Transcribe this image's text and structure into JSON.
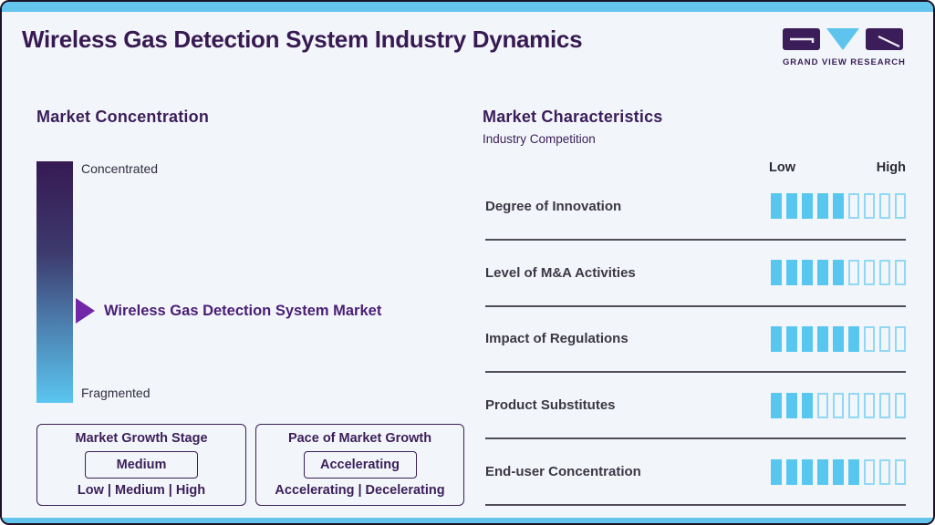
{
  "header": {
    "title": "Wireless Gas Detection System Industry Dynamics",
    "logo_text": "GRAND VIEW RESEARCH"
  },
  "colors": {
    "accent_blue": "#64c5ec",
    "title_purple": "#381a52",
    "box_purple": "#3b1e59",
    "marker_arrow_purple": "#7127a8",
    "marker_text_purple": "#4a1d75",
    "segment_fill_blue": "#57c7f0",
    "segment_outline_blue": "#90d8f5",
    "gradient_top": "#361a52",
    "gradient_bottom": "#5ac6ef",
    "row_label_dark": "#3c3744"
  },
  "market_concentration": {
    "heading": "Market Concentration",
    "scale_top_label": "Concentrated",
    "scale_bottom_label": "Fragmented",
    "marker_label": "Wireless Gas Detection System Market",
    "growth_stage_box": {
      "title": "Market Growth Stage",
      "value": "Medium",
      "options": "Low | Medium | High"
    },
    "pace_box": {
      "title": "Pace of Market Growth",
      "value": "Accelerating",
      "options": "Accelerating | Decelerating"
    }
  },
  "market_characteristics": {
    "heading": "Market Characteristics",
    "subheading": "Industry Competition",
    "scale_low_label": "Low",
    "scale_high_label": "High",
    "rows": [
      {
        "label": "Degree of Innovation",
        "filled": 5,
        "total": 9
      },
      {
        "label": "Level of M&A Activities",
        "filled": 5,
        "total": 9
      },
      {
        "label": "Impact of Regulations",
        "filled": 6,
        "total": 9
      },
      {
        "label": "Product Substitutes",
        "filled": 3,
        "total": 9
      },
      {
        "label": "End-user Concentration",
        "filled": 6,
        "total": 9
      }
    ]
  },
  "chart_data": {
    "type": "bar",
    "title": "Market Characteristics — Industry Competition",
    "categories": [
      "Degree of Innovation",
      "Level of M&A Activities",
      "Impact of Regulations",
      "Product Substitutes",
      "End-user Concentration"
    ],
    "values": [
      5,
      5,
      6,
      3,
      6
    ],
    "value_scale": {
      "min": 0,
      "max": 9,
      "low_label": "Low",
      "high_label": "High"
    },
    "legend_position": "none",
    "annotations": {
      "market_concentration_marker": "Wireless Gas Detection System Market",
      "concentration_scale_ends": [
        "Concentrated",
        "Fragmented"
      ],
      "market_growth_stage": "Medium",
      "market_growth_stage_options": [
        "Low",
        "Medium",
        "High"
      ],
      "pace_of_market_growth": "Accelerating",
      "pace_options": [
        "Accelerating",
        "Decelerating"
      ]
    }
  }
}
